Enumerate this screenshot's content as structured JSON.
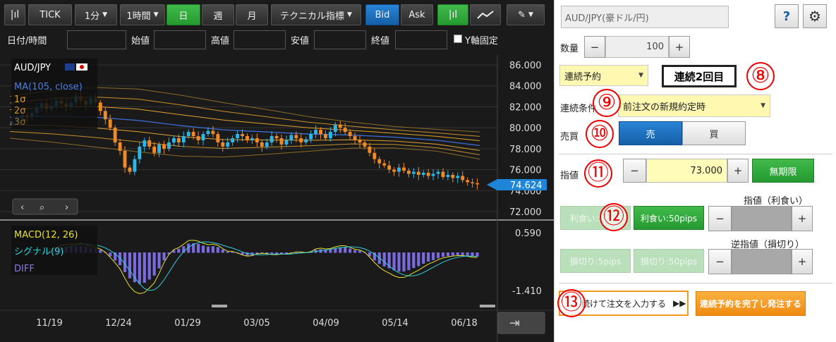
{
  "toolbar": {
    "tick_label": "TICK",
    "interval1": "1分",
    "interval2": "1時間",
    "day": "日",
    "week": "週",
    "month": "月",
    "tech": "テクニカル指標",
    "bid": "Bid",
    "ask": "Ask"
  },
  "ohlc": {
    "datetime": "日付/時間",
    "open": "始値",
    "high": "高値",
    "low": "安値",
    "close": "終値",
    "yfix": "Y軸固定"
  },
  "chart_data": {
    "type": "candlestick",
    "symbol": "AUD/JPY",
    "indicators": [
      "MA(105, close)",
      "1σ",
      "2σ",
      "3σ"
    ],
    "y_ticks": [
      "86.000",
      "84.000",
      "82.000",
      "80.000",
      "78.000",
      "76.000",
      "74.000",
      "72.000"
    ],
    "ylim": [
      72,
      86
    ],
    "current_price": "74.624",
    "x_ticks": [
      "11/19",
      "12/24",
      "01/29",
      "03/05",
      "04/09",
      "05/14",
      "06/18"
    ],
    "closes": [
      80.6,
      80.9,
      81.2,
      81.0,
      81.4,
      81.9,
      82.3,
      81.8,
      82.1,
      82.6,
      82.3,
      82.0,
      82.4,
      83.0,
      82.6,
      82.2,
      82.8,
      82.4,
      81.6,
      80.8,
      80.0,
      78.6,
      77.8,
      76.2,
      75.8,
      77.0,
      78.2,
      78.8,
      78.2,
      77.6,
      78.4,
      78.0,
      78.6,
      79.0,
      78.6,
      79.2,
      79.6,
      79.2,
      78.8,
      79.4,
      79.7,
      79.4,
      78.6,
      78.2,
      78.6,
      79.0,
      79.4,
      79.2,
      78.8,
      79.0,
      78.6,
      78.2,
      78.6,
      79.2,
      79.0,
      78.4,
      78.8,
      79.3,
      79.0,
      78.6,
      78.9,
      79.4,
      79.8,
      79.4,
      79.0,
      79.6,
      80.3,
      80.0,
      79.6,
      79.2,
      78.8,
      78.6,
      78.2,
      77.6,
      77.0,
      76.6,
      76.4,
      76.0,
      75.8,
      76.2,
      75.9,
      75.6,
      75.8,
      75.5,
      75.7,
      75.4,
      75.6,
      75.8,
      75.3,
      75.5,
      75.2,
      75.4,
      75.0,
      74.8,
      74.7,
      74.6
    ],
    "ma": [
      81.0,
      81.1,
      81.0,
      80.7,
      80.2,
      79.8,
      79.6,
      79.4,
      79.3,
      79.1,
      78.8,
      78.3
    ],
    "macd_ticks": [
      "0.590",
      "-1.410"
    ],
    "macd_labels": [
      "MACD(12, 26)",
      "シグナル(9)",
      "DIFF"
    ]
  },
  "order": {
    "pair": "AUD/JPY(豪ドル/円)",
    "help": "?",
    "qty_label": "数量",
    "qty_value": "100",
    "minus": "−",
    "plus": "+",
    "order_type": "連続予約",
    "sequence_badge": "連続2回目",
    "cond_label": "連続条件",
    "cond_value": "前注文の新規約定時",
    "side_label": "売買",
    "sell": "売",
    "buy": "買",
    "limit_label": "指値",
    "limit_value": "73.000",
    "expiry": "無期限",
    "tp_header": "指値（利食い）",
    "tp_btn1": "利食い:5pips",
    "tp_btn2": "利食い:50pips",
    "sl_header": "逆指値（損切り）",
    "sl_btn1": "損切り:5pips",
    "sl_btn2": "損切り:50pips",
    "next_btn": "続けて注文を入力する",
    "next_arrows": "▶▶",
    "complete_btn": "連続予約を完了し発注する"
  },
  "annotations": [
    "⑧",
    "⑨",
    "⑩",
    "⑪",
    "⑫",
    "⑬"
  ]
}
